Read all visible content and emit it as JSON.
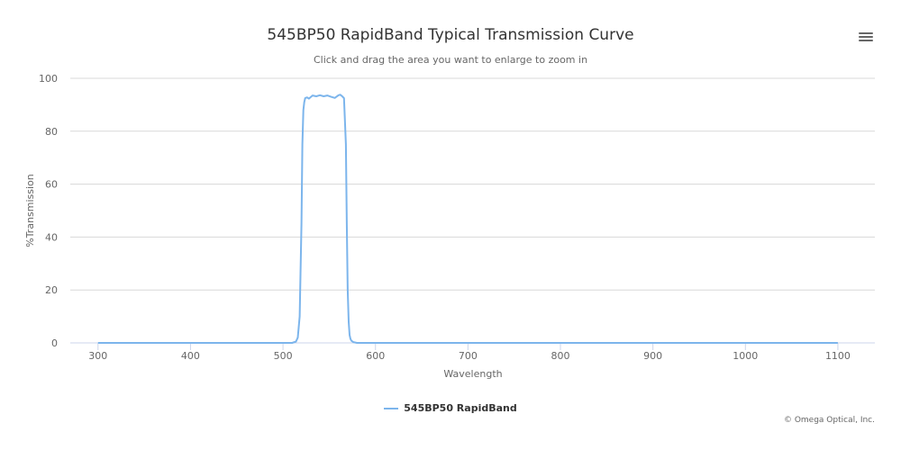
{
  "title": "545BP50 RapidBand Typical Transmission Curve",
  "subtitle": "Click and drag the area you want to enlarge to zoom in",
  "credits": "© Omega Optical, Inc.",
  "icons": {
    "menu": "hamburger-menu-icon"
  },
  "colors": {
    "series": "#7cb5ec",
    "grid": "#d8d8d8",
    "axis_line": "#ccd6eb"
  },
  "chart_data": {
    "type": "line",
    "xlabel": "Wavelength",
    "ylabel": "%Transmission",
    "xlim": [
      270,
      1140
    ],
    "ylim": [
      0,
      100
    ],
    "xticks": [
      300,
      400,
      500,
      600,
      700,
      800,
      900,
      1000,
      1100
    ],
    "yticks": [
      0,
      20,
      40,
      60,
      80,
      100
    ],
    "grid": true,
    "legend_position": "bottom-center",
    "series": [
      {
        "name": "545BP50 RapidBand",
        "x": [
          300,
          510,
          514,
          516,
          518,
          520,
          521,
          522,
          523,
          524,
          526,
          528,
          532,
          536,
          540,
          544,
          548,
          552,
          556,
          560,
          562,
          564,
          566,
          568,
          569,
          570,
          571,
          572,
          573,
          574,
          576,
          580,
          600,
          700,
          800,
          900,
          1000,
          1100
        ],
        "y": [
          0,
          0,
          0.5,
          2,
          10,
          45,
          75,
          88,
          91,
          92.5,
          92.8,
          92.3,
          93.5,
          93.2,
          93.6,
          93.2,
          93.5,
          93,
          92.6,
          93.6,
          93.8,
          93.2,
          92.5,
          75,
          45,
          20,
          8,
          3,
          1.5,
          0.8,
          0.3,
          0,
          0,
          0,
          0,
          0,
          0,
          0
        ]
      }
    ]
  }
}
